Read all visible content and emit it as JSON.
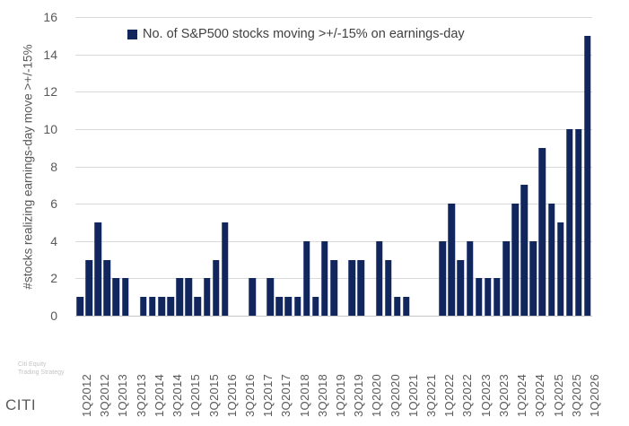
{
  "legend": {
    "label": "No. of S&P500 stocks moving >+/-15% on earnings-day",
    "marker_color": "#12265e"
  },
  "y_axis": {
    "title": "#stocks realizing earnings-day move >+/-15%"
  },
  "watermark": {
    "line1": "Citi Equity",
    "line2": "Trading Strategy"
  },
  "footer": {
    "brand": "CITI"
  },
  "chart_data": {
    "type": "bar",
    "title": "",
    "legend": "No. of S&P500 stocks moving >+/-15% on earnings-day",
    "xlabel": "",
    "ylabel": "#stocks realizing earnings-day move >+/-15%",
    "ylim": [
      0,
      16
    ],
    "y_tick_step": 2,
    "grid": true,
    "legend_position": "top",
    "bar_color": "#12265e",
    "categories": [
      "1Q2012",
      "2Q2012",
      "3Q2012",
      "4Q2012",
      "1Q2013",
      "2Q2013",
      "3Q2013",
      "4Q2013",
      "1Q2014",
      "2Q2014",
      "3Q2014",
      "4Q2014",
      "1Q2015",
      "2Q2015",
      "3Q2015",
      "4Q2015",
      "1Q2016",
      "2Q2016",
      "3Q2016",
      "4Q2016",
      "1Q2017",
      "2Q2017",
      "3Q2017",
      "4Q2017",
      "1Q2018",
      "2Q2018",
      "3Q2018",
      "4Q2018",
      "1Q2019",
      "2Q2019",
      "3Q2019",
      "4Q2019",
      "1Q2020",
      "2Q2020",
      "3Q2020",
      "4Q2020",
      "1Q2021",
      "2Q2021",
      "3Q2021",
      "4Q2021",
      "1Q2022",
      "2Q2022",
      "3Q2022",
      "4Q2022",
      "1Q2023",
      "2Q2023",
      "3Q2023",
      "4Q2023",
      "1Q2024",
      "2Q2024",
      "3Q2024",
      "4Q2024",
      "1Q2025",
      "2Q2025",
      "3Q2025",
      "4Q2025",
      "1Q2026"
    ],
    "values": [
      1,
      3,
      5,
      3,
      2,
      2,
      0,
      1,
      1,
      1,
      1,
      2,
      2,
      1,
      2,
      3,
      5,
      0,
      0,
      2,
      0,
      2,
      1,
      1,
      1,
      4,
      1,
      4,
      3,
      0,
      3,
      3,
      0,
      4,
      3,
      1,
      1,
      0,
      0,
      0,
      4,
      6,
      3,
      4,
      2,
      2,
      2,
      4,
      6,
      7,
      4,
      9,
      6,
      5,
      10,
      10,
      15
    ],
    "x_tick_label_every": 2
  }
}
